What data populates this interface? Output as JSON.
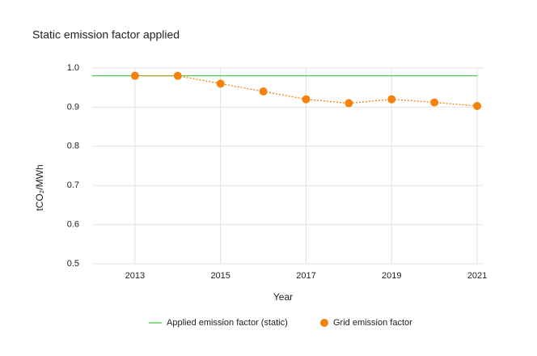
{
  "chart_data": {
    "type": "line",
    "title": "Static emission factor applied",
    "x_label": "Year",
    "y_label": "tCO₂/MWh",
    "xlim": [
      2012,
      2021.15
    ],
    "xticks": [
      2013,
      2015,
      2017,
      2019,
      2021
    ],
    "ylim": [
      0.5,
      1
    ],
    "yticks": [
      0.5,
      0.6,
      0.7,
      0.8,
      0.9,
      {
        "value": 1,
        "label": "1.0"
      }
    ],
    "grid": true,
    "series": [
      {
        "name": "Applied emission factor (static)",
        "color": "#3ec43e",
        "style": "solid",
        "marker": "none",
        "x": [
          2012,
          2021
        ],
        "values": [
          0.98,
          0.98
        ]
      },
      {
        "name": "Grid emission factor",
        "color": "#f5820d",
        "style": "dotted",
        "marker": "circle",
        "x": [
          2013,
          2014,
          2015,
          2016,
          2017,
          2018,
          2019,
          2020,
          2021
        ],
        "values": [
          0.98,
          0.98,
          0.96,
          0.94,
          0.92,
          0.91,
          0.92,
          0.912,
          0.903
        ]
      }
    ]
  }
}
